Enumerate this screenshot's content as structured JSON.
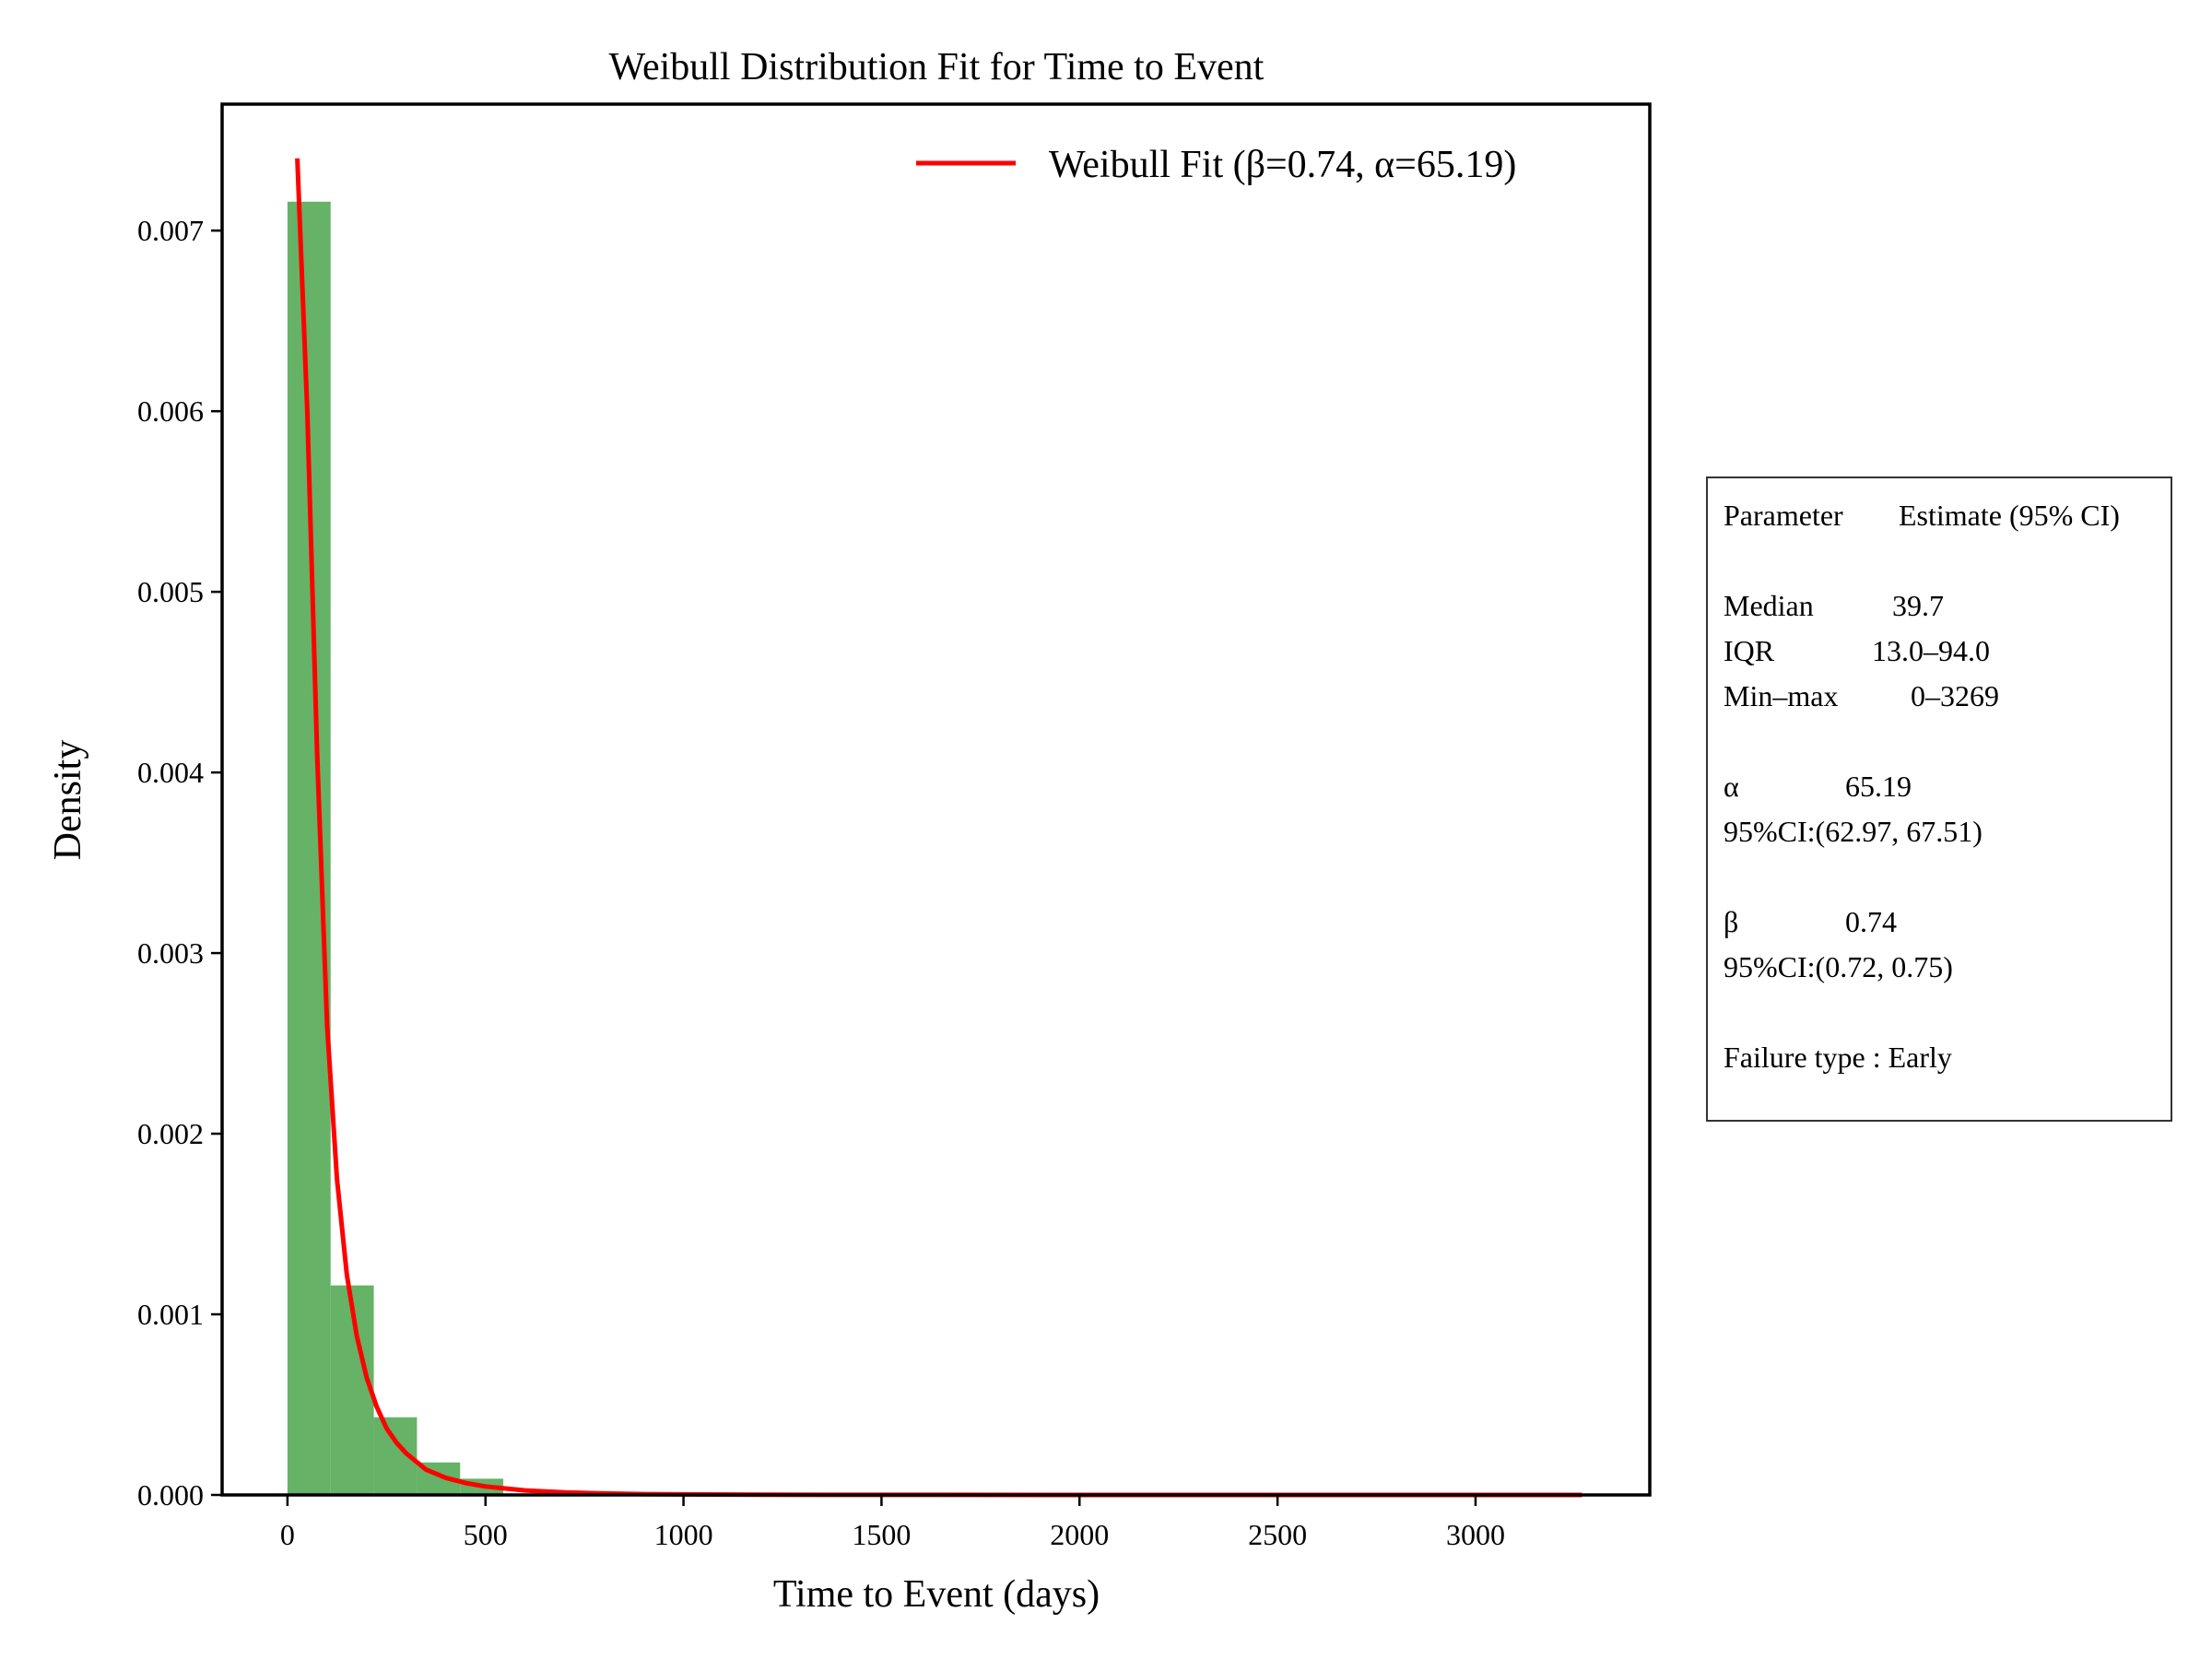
{
  "chart_data": {
    "type": "bar",
    "title": "Weibull Distribution Fit for Time to Event",
    "xlabel": "Time to Event (days)",
    "ylabel": "Density",
    "xlim": [
      -165,
      3440
    ],
    "ylim": [
      0,
      0.0077
    ],
    "x_ticks": [
      0,
      500,
      1000,
      1500,
      2000,
      2500,
      3000
    ],
    "x_tick_labels": [
      "0",
      "500",
      "1000",
      "1500",
      "2000",
      "2500",
      "3000"
    ],
    "y_ticks": [
      0,
      0.001,
      0.002,
      0.003,
      0.004,
      0.005,
      0.006,
      0.007
    ],
    "y_tick_labels": [
      "0.000",
      "0.001",
      "0.002",
      "0.003",
      "0.004",
      "0.005",
      "0.006",
      "0.007"
    ],
    "grid": false,
    "legend_position": "top-right",
    "histogram": {
      "color": "#66b266",
      "bin_edges": [
        0,
        109,
        218,
        327,
        436,
        545
      ],
      "values": [
        0.00716,
        0.00116,
        0.00043,
        0.00018,
        9e-05
      ]
    },
    "series": [
      {
        "name": "Weibull Fit (β=0.74, α=65.19)",
        "type": "line",
        "color": "#ff0000",
        "x": [
          25,
          50,
          75,
          100,
          125,
          150,
          175,
          200,
          225,
          250,
          275,
          300,
          350,
          400,
          450,
          500,
          600,
          700,
          800,
          900,
          1000,
          1200,
          1500,
          2000,
          2500,
          3000,
          3269
        ],
        "y": [
          0.0074,
          0.006,
          0.0041,
          0.0026,
          0.00175,
          0.00122,
          0.00088,
          0.00065,
          0.00049,
          0.00037,
          0.00029,
          0.00023,
          0.00014,
          9.5e-05,
          6.6e-05,
          4.7e-05,
          2.5e-05,
          1.4e-05,
          8e-06,
          4.8e-06,
          3e-06,
          1.2e-06,
          3e-07,
          3e-08,
          0.0,
          0.0,
          0.0
        ]
      }
    ]
  },
  "stats_table": {
    "header": {
      "label": "Parameter",
      "value": "Estimate (95% CI)"
    },
    "median": {
      "label": "Median",
      "value": "39.7"
    },
    "iqr": {
      "label": "IQR",
      "value": "13.0–94.0"
    },
    "minmax": {
      "label": "Min–max",
      "value": "0–3269"
    },
    "alpha": {
      "label": "α",
      "value": "65.19"
    },
    "alpha_ci": "95%CI:(62.97, 67.51)",
    "beta": {
      "label": "β",
      "value": "0.74"
    },
    "beta_ci": "95%CI:(0.72, 0.75)",
    "failure_type": "Failure type : Early"
  }
}
